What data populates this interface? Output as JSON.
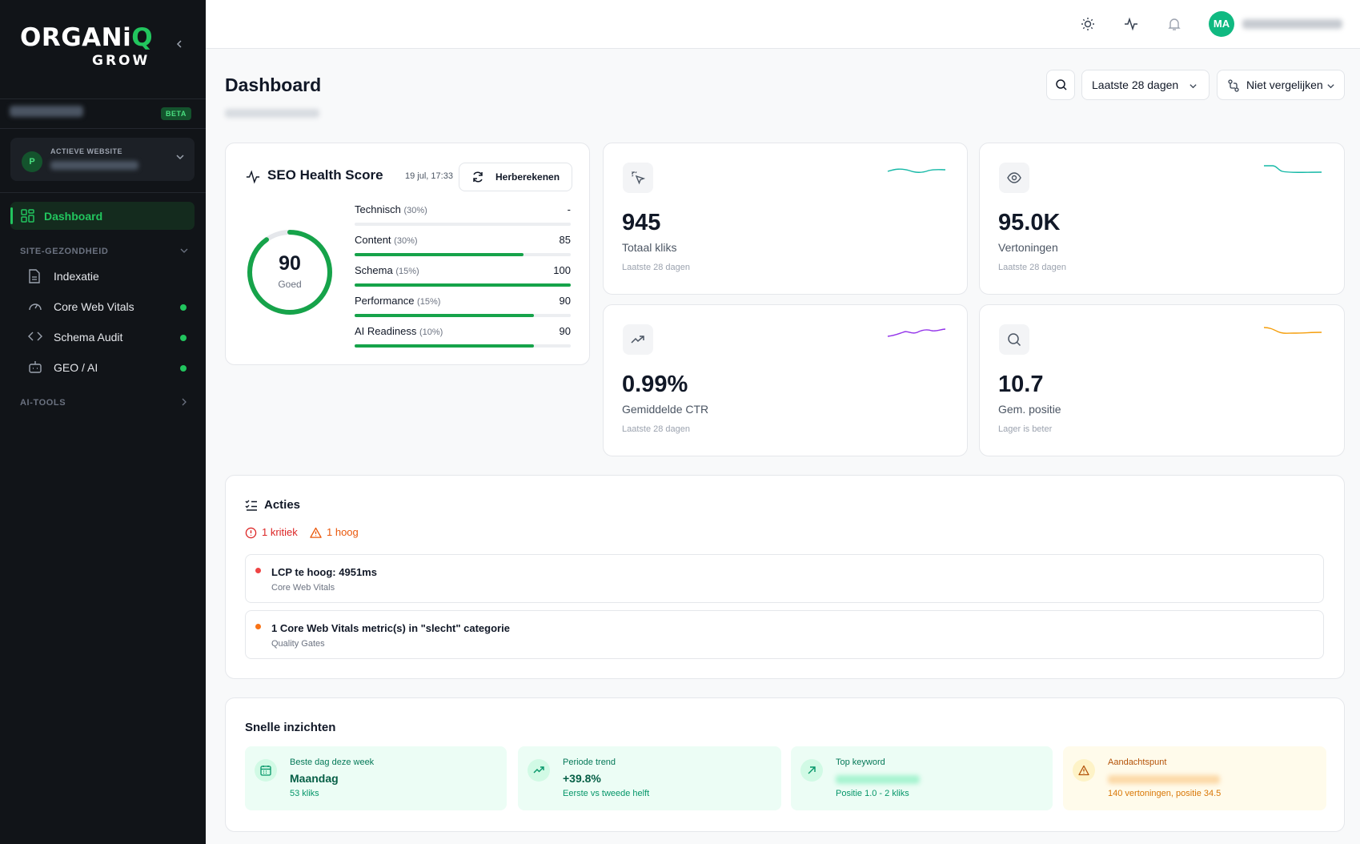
{
  "app": {
    "logo_main": "ORGANi",
    "logo_q": "Q",
    "logo_sub": "GROW"
  },
  "sidebar": {
    "beta_badge": "BETA",
    "active_site_label": "ACTIEVE WEBSITE",
    "site_avatar": "P",
    "nav_dashboard": "Dashboard",
    "section_health": "SITE-GEZONDHEID",
    "items": [
      {
        "label": "Indexatie",
        "icon": "file-icon",
        "dot": false
      },
      {
        "label": "Core Web Vitals",
        "icon": "gauge-icon",
        "dot": true
      },
      {
        "label": "Schema Audit",
        "icon": "code-icon",
        "dot": true
      },
      {
        "label": "GEO / AI",
        "icon": "bot-icon",
        "dot": true
      }
    ],
    "section_ai": "AI-TOOLS"
  },
  "topbar": {
    "user_initials": "MA"
  },
  "header": {
    "title": "Dashboard",
    "date_range": "Laatste 28 dagen",
    "compare": "Niet vergelijken"
  },
  "seo_health": {
    "title": "SEO Health Score",
    "date": "19 jul, 17:33",
    "recalc_label": "Herberekenen",
    "score": "90",
    "score_value": 90,
    "score_label": "Goed",
    "metrics": [
      {
        "name": "Technisch",
        "weight": "(30%)",
        "value": "-",
        "fill": 0
      },
      {
        "name": "Content",
        "weight": "(30%)",
        "value": "85",
        "fill": 0.78
      },
      {
        "name": "Schema",
        "weight": "(15%)",
        "value": "100",
        "fill": 1
      },
      {
        "name": "Performance",
        "weight": "(15%)",
        "value": "90",
        "fill": 0.83
      },
      {
        "name": "AI Readiness",
        "weight": "(10%)",
        "value": "90",
        "fill": 0.83
      }
    ]
  },
  "stats": [
    {
      "value": "945",
      "label": "Totaal kliks",
      "sub": "Laatste 28 dagen",
      "icon": "cursor-click-icon",
      "color": "#14b8a6"
    },
    {
      "value": "95.0K",
      "label": "Vertoningen",
      "sub": "Laatste 28 dagen",
      "icon": "eye-icon",
      "color": "#14b8a6"
    },
    {
      "value": "0.99%",
      "label": "Gemiddelde CTR",
      "sub": "Laatste 28 dagen",
      "icon": "trend-up-icon",
      "color": "#9333ea"
    },
    {
      "value": "10.7",
      "label": "Gem. positie",
      "sub": "Lager is beter",
      "icon": "search-icon",
      "color": "#f59e0b"
    }
  ],
  "actions": {
    "title": "Acties",
    "critical": "1 kritiek",
    "high": "1 hoog",
    "items": [
      {
        "title": "LCP te hoog: 4951ms",
        "sub": "Core Web Vitals",
        "color": "#ef4444"
      },
      {
        "title": "1 Core Web Vitals metric(s) in \"slecht\" categorie",
        "sub": "Quality Gates",
        "color": "#f97316"
      }
    ]
  },
  "insights": {
    "title": "Snelle inzichten",
    "cards": [
      {
        "label": "Beste dag deze week",
        "value": "Maandag",
        "sub": "53 kliks",
        "icon": "calendar-icon"
      },
      {
        "label": "Periode trend",
        "value": "+39.8%",
        "sub": "Eerste vs tweede helft",
        "icon": "trend-up-icon"
      },
      {
        "label": "Top keyword",
        "value": "",
        "sub": "Positie 1.0 - 2 kliks",
        "icon": "arrow-up-right-icon"
      },
      {
        "label": "Aandachtspunt",
        "value": "",
        "sub": "140 vertoningen, positie 34.5",
        "icon": "warning-icon"
      }
    ]
  }
}
